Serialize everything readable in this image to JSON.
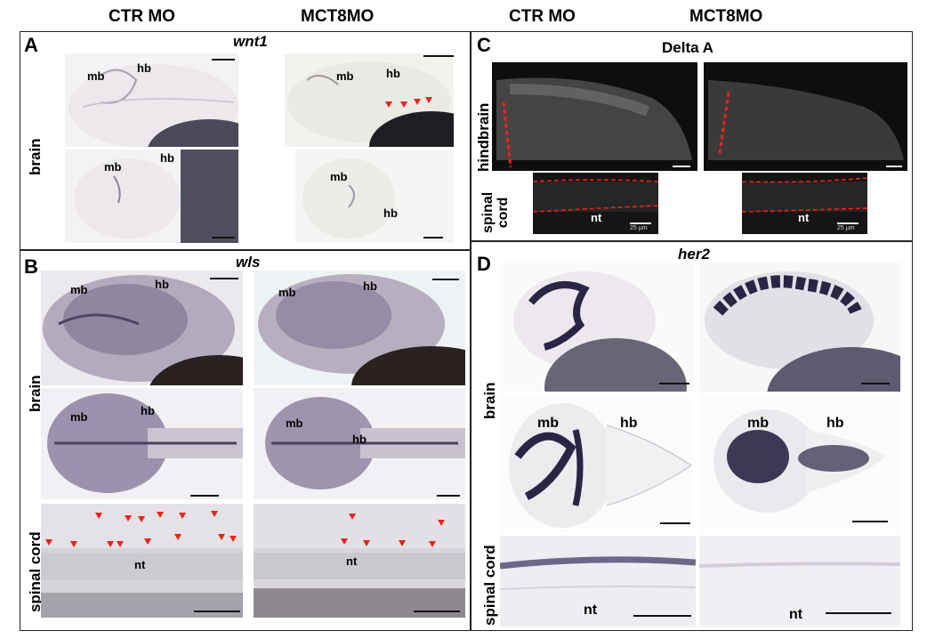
{
  "column_headers": [
    "CTR MO",
    "MCT8MO",
    "CTR MO",
    "MCT8MO"
  ],
  "panels": {
    "A": {
      "letter": "A",
      "gene": "wnt1",
      "row_label": "brain",
      "labels": {
        "mb": "mb",
        "hb": "hb"
      }
    },
    "B": {
      "letter": "B",
      "gene": "wls",
      "row_labels": [
        "brain",
        "spinal cord"
      ],
      "labels": {
        "mb": "mb",
        "hb": "hb",
        "nt": "nt"
      }
    },
    "C": {
      "letter": "C",
      "title": "Delta A",
      "row_labels": [
        "hindbrain",
        "spinal\ncord"
      ],
      "labels": {
        "nt": "nt"
      },
      "scale_text": "25 µm"
    },
    "D": {
      "letter": "D",
      "gene": "her2",
      "row_labels": [
        "brain",
        "spinal cord"
      ],
      "labels": {
        "mb": "mb",
        "hb": "hb",
        "nt": "nt"
      }
    }
  },
  "colors": {
    "arrowhead": "#e8231a",
    "stain": "#2b2545",
    "dashed_outline": "#e8231a"
  }
}
